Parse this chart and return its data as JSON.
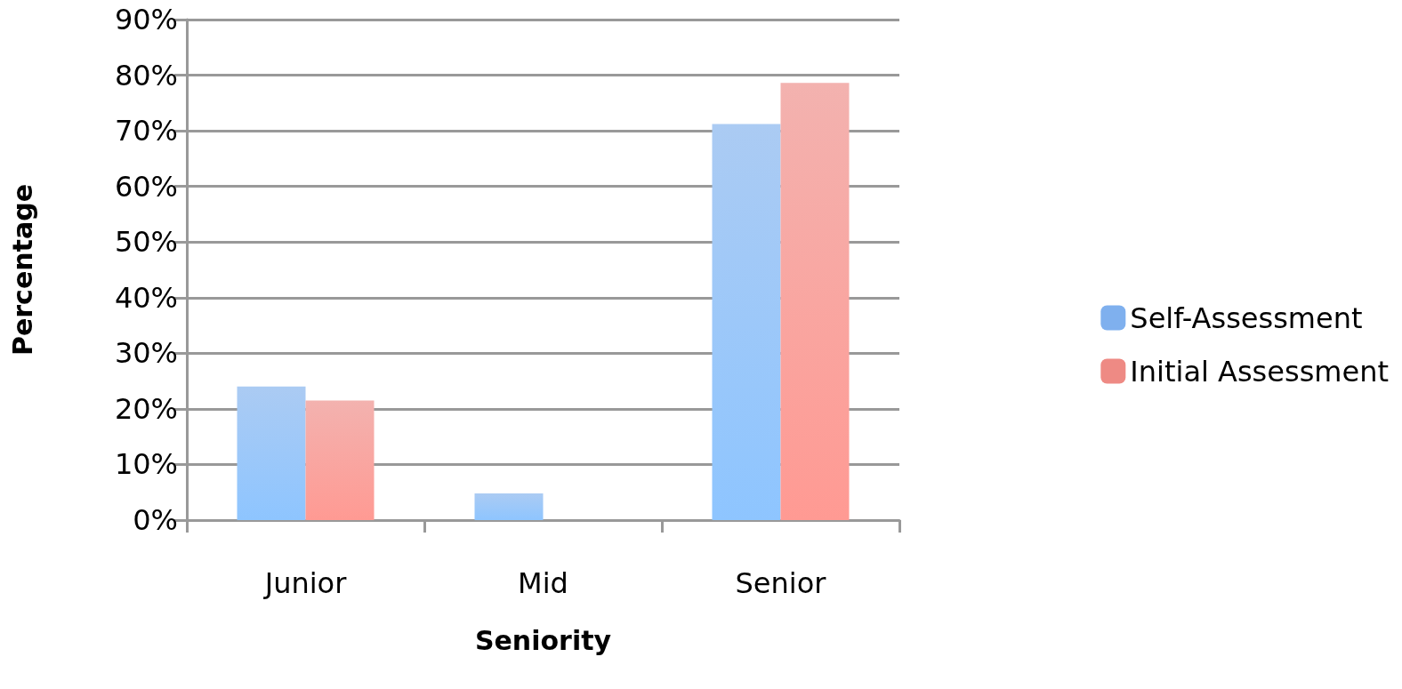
{
  "chart_data": {
    "type": "bar",
    "xlabel": "Seniority",
    "ylabel": "Percentage",
    "categories": [
      "Junior",
      "Mid",
      "Senior"
    ],
    "series": [
      {
        "name": "Self-Assessment",
        "color": "#7fb0ee",
        "values": [
          24,
          4.8,
          71.2
        ]
      },
      {
        "name": "Initial Assessment",
        "color": "#ee8a84",
        "values": [
          21.5,
          0,
          78.6
        ]
      }
    ],
    "ylim": [
      0,
      90
    ],
    "yticks": [
      {
        "value": 0,
        "label": "0%"
      },
      {
        "value": 10,
        "label": "10%"
      },
      {
        "value": 20,
        "label": "20%"
      },
      {
        "value": 30,
        "label": "30%"
      },
      {
        "value": 40,
        "label": "40%"
      },
      {
        "value": 50,
        "label": "50%"
      },
      {
        "value": 60,
        "label": "60%"
      },
      {
        "value": 70,
        "label": "70%"
      },
      {
        "value": 80,
        "label": "80%"
      },
      {
        "value": 90,
        "label": "90%"
      }
    ],
    "grid": "y",
    "legend": "right"
  }
}
